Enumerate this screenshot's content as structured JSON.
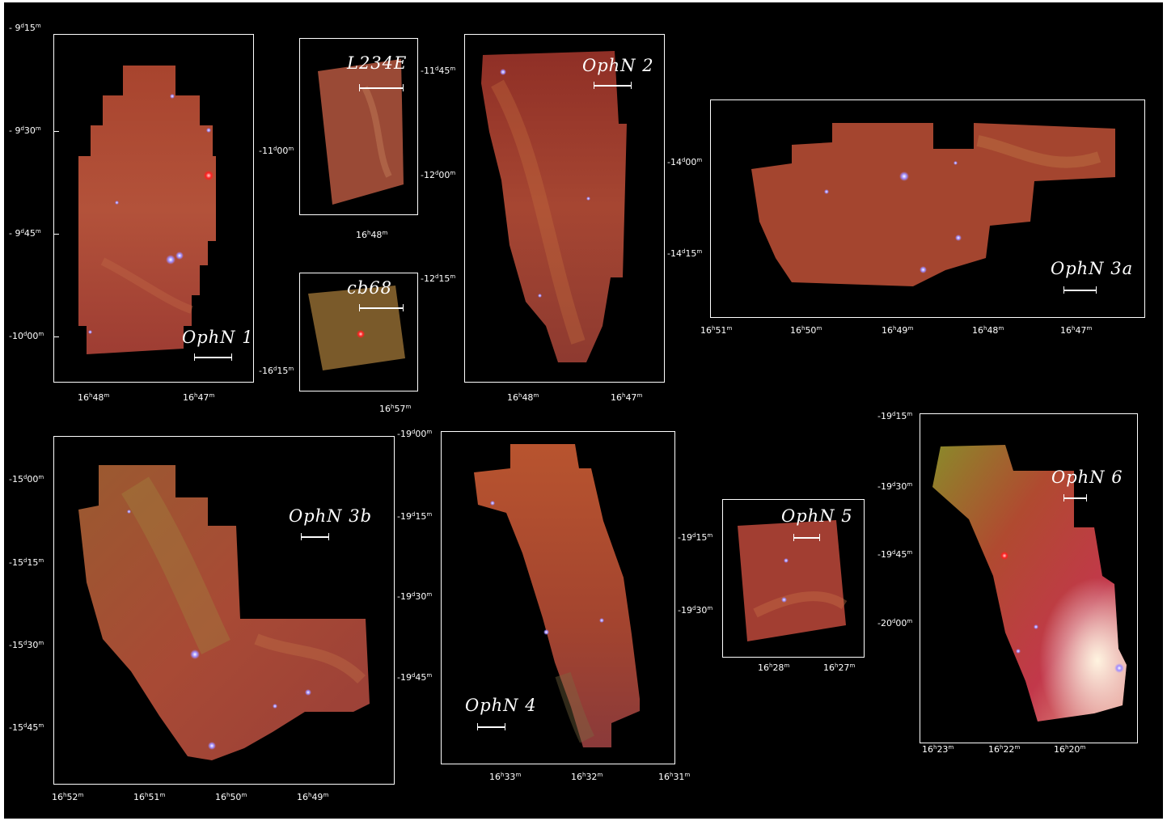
{
  "panels": [
    {
      "id": "ophn1",
      "title": "OphN 1",
      "dec_labels": [
        "- 9d15m",
        "- 9d30m",
        "- 9d45m",
        "-10d00m"
      ],
      "ra_labels": [
        "16h48m",
        "16h47m"
      ]
    },
    {
      "id": "l234e",
      "title": "L234E",
      "dec_labels": [
        "-11d00m"
      ],
      "ra_labels": [
        "16h48m"
      ]
    },
    {
      "id": "cb68",
      "title": "cb68",
      "dec_labels": [
        "-16d15m"
      ],
      "ra_labels": [
        "16h57m"
      ]
    },
    {
      "id": "ophn2",
      "title": "OphN 2",
      "dec_labels": [
        "-11d45m",
        "-12d00m",
        "-12d15m"
      ],
      "ra_labels": [
        "16h48m",
        "16h47m"
      ]
    },
    {
      "id": "ophn3a",
      "title": "OphN 3a",
      "dec_labels": [
        "-14d00m",
        "-14d15m"
      ],
      "ra_labels": [
        "16h51m",
        "16h50m",
        "16h49m",
        "16h48m",
        "16h47m"
      ]
    },
    {
      "id": "ophn3b",
      "title": "OphN 3b",
      "dec_labels": [
        "-15d00m",
        "-15d15m",
        "-15d30m",
        "-15d45m"
      ],
      "ra_labels": [
        "16h52m",
        "16h51m",
        "16h50m",
        "16h49m"
      ]
    },
    {
      "id": "ophn4",
      "title": "OphN 4",
      "dec_labels": [
        "-19d00m",
        "-19d15m",
        "-19d30m",
        "-19d45m"
      ],
      "ra_labels": [
        "16h33m",
        "16h32m",
        "16h31m"
      ]
    },
    {
      "id": "ophn5",
      "title": "OphN 5",
      "dec_labels": [
        "-19d15m",
        "-19d30m"
      ],
      "ra_labels": [
        "16h28m",
        "16h27m"
      ]
    },
    {
      "id": "ophn6",
      "title": "OphN 6",
      "dec_labels": [
        "-19d15m",
        "-19d30m",
        "-19d45m",
        "-20d00m"
      ],
      "ra_labels": [
        "16h23m",
        "16h22m",
        "16h20m"
      ]
    }
  ],
  "colors": {
    "background": "#000000",
    "frame": "#ffffff",
    "nebula_red": "#b8452f",
    "nebula_orange": "#c86a3a",
    "nebula_green": "#8a7a2a",
    "star_blue": "#8f7cff"
  }
}
